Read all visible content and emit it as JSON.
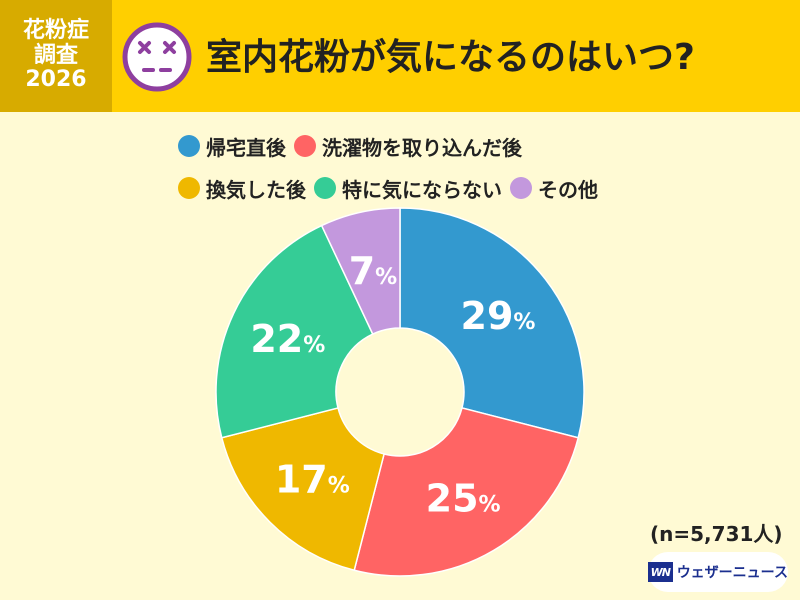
{
  "badge": {
    "line1": "花粉症",
    "line2": "調査",
    "line3": "2026"
  },
  "title": "室内花粉が気になるのはいつ?",
  "icons": {
    "face": "dizzy-face-icon"
  },
  "colors": {
    "header_bg": "#FFCF00",
    "badge_bg": "#D7AB00",
    "page_bg": "#FFFAD4",
    "face_purple": "#8E3F9F"
  },
  "chart_data": {
    "type": "pie",
    "subtype": "donut",
    "title": "",
    "unit": "%",
    "labels": [
      "帰宅直後",
      "洗濯物を取り込んだ後",
      "換気した後",
      "特に気にならない",
      "その他"
    ],
    "values": [
      29,
      25,
      17,
      22,
      7
    ],
    "colors": [
      "#3399CF",
      "#FF6464",
      "#EFB800",
      "#35CC96",
      "#C398DD"
    ],
    "legend_position": "top",
    "sample_size": "(n=5,731人)"
  },
  "brand": {
    "mark": "WN",
    "name": "ウェザーニュース"
  }
}
